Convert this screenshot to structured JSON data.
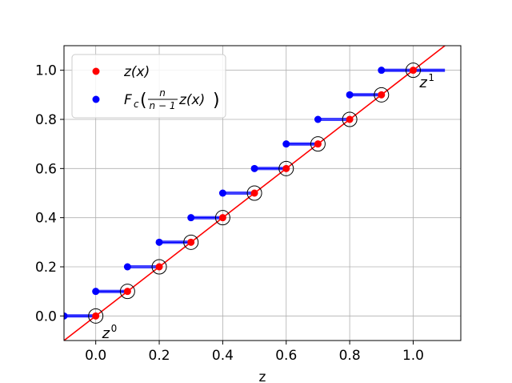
{
  "chart_data": {
    "type": "scatter",
    "title": "",
    "xlabel": "z",
    "ylabel": "",
    "xlim": [
      -0.1,
      1.15
    ],
    "ylim": [
      -0.1,
      1.1
    ],
    "xticks": [
      0.0,
      0.2,
      0.4,
      0.6,
      0.8,
      1.0
    ],
    "xtick_labels": [
      "0.0",
      "0.2",
      "0.4",
      "0.6",
      "0.8",
      "1.0"
    ],
    "yticks": [
      0.0,
      0.2,
      0.4,
      0.6,
      0.8,
      1.0
    ],
    "ytick_labels": [
      "0.0",
      "0.2",
      "0.4",
      "0.6",
      "0.8",
      "1.0"
    ],
    "grid": true,
    "legend_position": "top-left",
    "legend": [
      {
        "label": "z(x)",
        "color": "#ff0000"
      },
      {
        "label_main": "F",
        "label_sub": "c",
        "label_num": "n",
        "label_den": "n − 1",
        "label_tail": "z(x)",
        "color": "#0000ff"
      }
    ],
    "line": {
      "color": "#ff0000",
      "from": [
        -0.1,
        -0.1
      ],
      "to": [
        1.1,
        1.1
      ]
    },
    "series": [
      {
        "color": "#ff0000",
        "x": [
          0.0,
          0.1,
          0.2,
          0.3,
          0.4,
          0.5,
          0.6,
          0.7,
          0.8,
          0.9,
          1.0
        ],
        "y": [
          0.0,
          0.1,
          0.2,
          0.3,
          0.4,
          0.5,
          0.6,
          0.7,
          0.8,
          0.9,
          1.0
        ]
      },
      {
        "color": "#0000ff",
        "x": [
          -0.1,
          0.0,
          0.1,
          0.2,
          0.3,
          0.4,
          0.5,
          0.6,
          0.7,
          0.8,
          0.9
        ],
        "y": [
          0.0,
          0.1,
          0.2,
          0.3,
          0.4,
          0.5,
          0.6,
          0.7,
          0.8,
          0.9,
          1.0
        ]
      }
    ],
    "steps": {
      "color": "#0000ff",
      "segments": [
        {
          "x0": -0.1,
          "x1": 0.0,
          "y": 0.0
        },
        {
          "x0": 0.0,
          "x1": 0.1,
          "y": 0.1
        },
        {
          "x0": 0.1,
          "x1": 0.2,
          "y": 0.2
        },
        {
          "x0": 0.2,
          "x1": 0.3,
          "y": 0.3
        },
        {
          "x0": 0.3,
          "x1": 0.4,
          "y": 0.4
        },
        {
          "x0": 0.4,
          "x1": 0.5,
          "y": 0.5
        },
        {
          "x0": 0.5,
          "x1": 0.6,
          "y": 0.6
        },
        {
          "x0": 0.6,
          "x1": 0.7,
          "y": 0.7
        },
        {
          "x0": 0.7,
          "x1": 0.8,
          "y": 0.8
        },
        {
          "x0": 0.8,
          "x1": 0.9,
          "y": 0.9
        },
        {
          "x0": 0.9,
          "x1": 1.1,
          "y": 1.0
        }
      ]
    },
    "circles": {
      "x": [
        0.0,
        0.1,
        0.2,
        0.3,
        0.4,
        0.5,
        0.6,
        0.7,
        0.8,
        0.9,
        1.0
      ],
      "y": [
        0.0,
        0.1,
        0.2,
        0.3,
        0.4,
        0.5,
        0.6,
        0.7,
        0.8,
        0.9,
        1.0
      ]
    },
    "annotations": [
      {
        "base": "z",
        "sup": "0",
        "x": 0.02,
        "y": -0.07
      },
      {
        "base": "z",
        "sup": "1",
        "x": 1.02,
        "y": 0.95
      }
    ]
  }
}
